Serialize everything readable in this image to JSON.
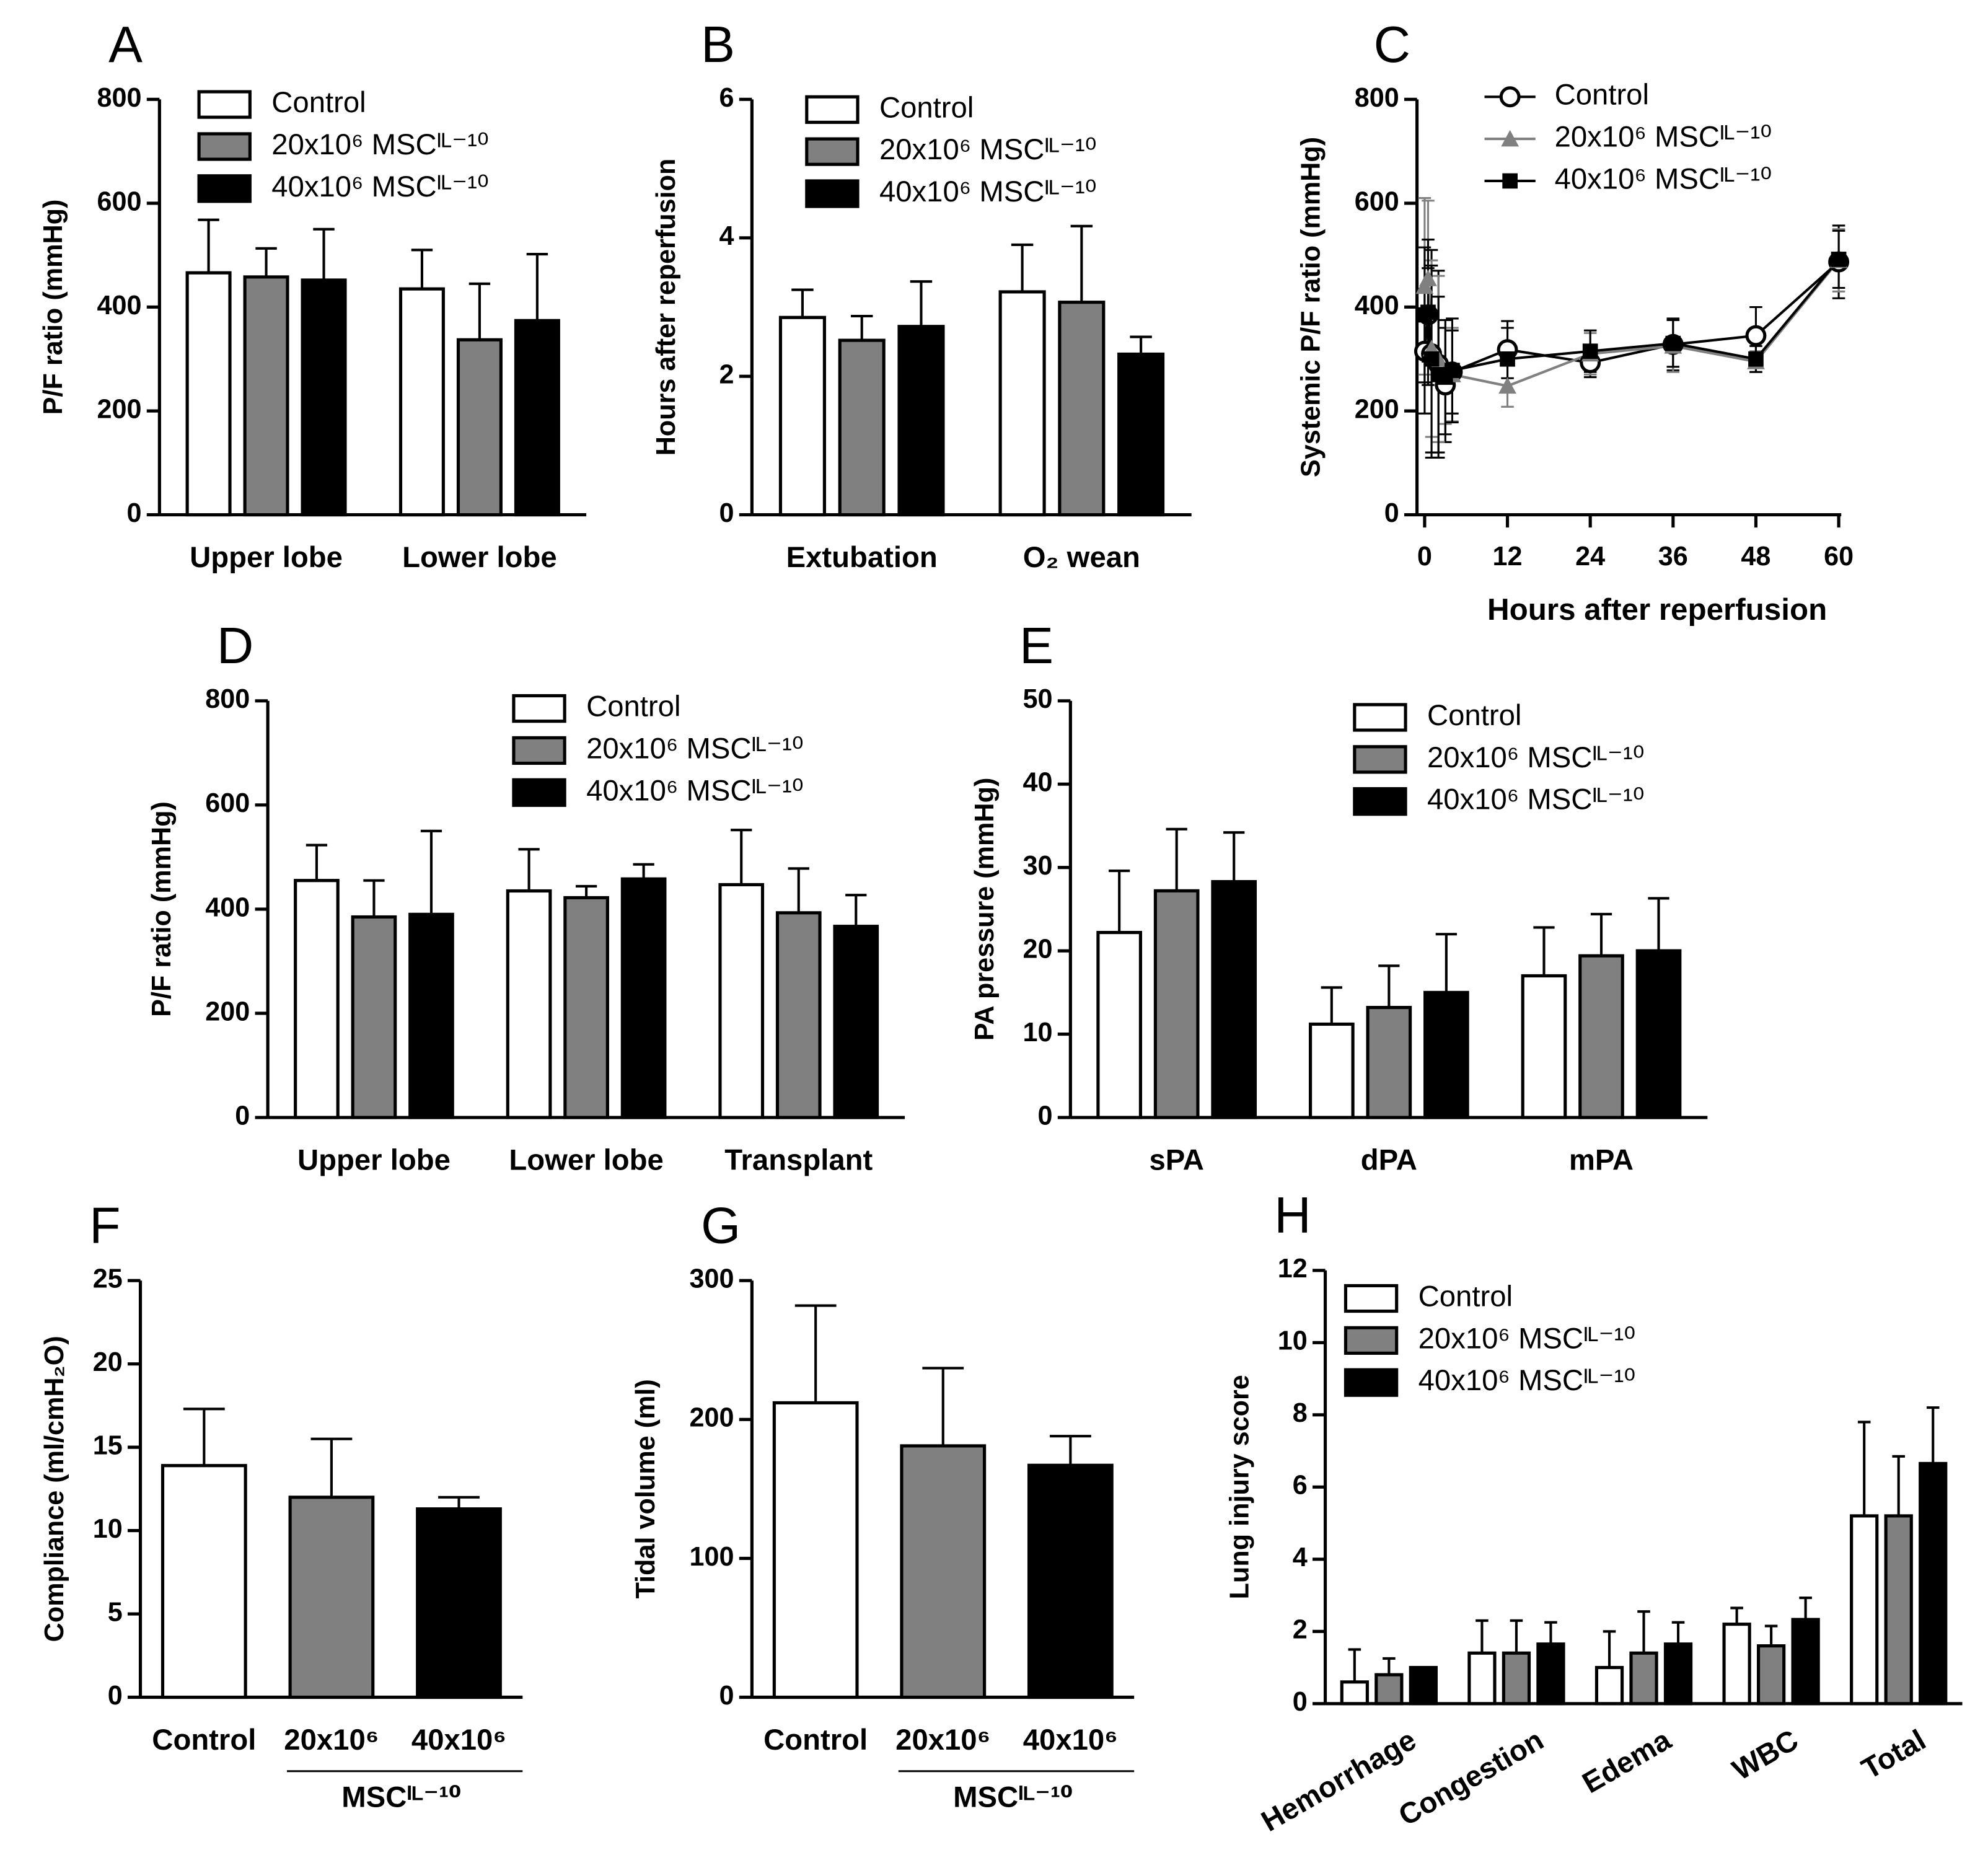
{
  "chart_data": [
    {
      "type": "bar",
      "label": "A",
      "ylabel": "P/F ratio (mmHg)",
      "categories": [
        "Upper lobe",
        "Lower lobe"
      ],
      "series": [
        {
          "name": "Control",
          "color": "#ffffff",
          "values": [
            466,
            435
          ],
          "errors": [
            102,
            75
          ]
        },
        {
          "name": "20x10⁶ MSCᴵᴸ⁻¹⁰",
          "color": "#808080",
          "values": [
            458,
            337
          ],
          "errors": [
            55,
            108
          ]
        },
        {
          "name": "40x10⁶ MSCᴵᴸ⁻¹⁰",
          "color": "#000000",
          "values": [
            452,
            374
          ],
          "errors": [
            98,
            128
          ]
        }
      ],
      "ylim": [
        0,
        800
      ],
      "yticks": [
        0,
        200,
        400,
        600,
        800
      ],
      "legend": "upper right"
    },
    {
      "type": "bar",
      "label": "B",
      "ylabel": "Hours after reperfusion",
      "categories": [
        "Extubation",
        "O₂ wean"
      ],
      "series": [
        {
          "name": "Control",
          "color": "#ffffff",
          "values": [
            2.85,
            3.22
          ],
          "errors": [
            0.4,
            0.68
          ]
        },
        {
          "name": "20x10⁶ MSCᴵᴸ⁻¹⁰",
          "color": "#808080",
          "values": [
            2.52,
            3.07
          ],
          "errors": [
            0.35,
            1.1
          ]
        },
        {
          "name": "40x10⁶ MSCᴵᴸ⁻¹⁰",
          "color": "#000000",
          "values": [
            2.72,
            2.32
          ],
          "errors": [
            0.65,
            0.25
          ]
        }
      ],
      "ylim": [
        0,
        6
      ],
      "yticks": [
        0,
        2,
        4,
        6
      ],
      "legend": "upper right"
    },
    {
      "type": "line",
      "label": "C",
      "ylabel": "Systemic P/F ratio (mmHg)",
      "xlabel": "Hours after reperfusion",
      "x": [
        0,
        0.5,
        1,
        2,
        3,
        4,
        12,
        24,
        36,
        48,
        60
      ],
      "series": [
        {
          "name": "Control",
          "color": "#000000",
          "marker": "open-circle",
          "values": [
            315,
            385,
            310,
            290,
            250,
            275,
            318,
            293,
            328,
            345,
            487
          ],
          "errors": [
            120,
            90,
            200,
            180,
            110,
            80,
            55,
            28,
            50,
            55,
            70
          ]
        },
        {
          "name": "20x10⁶ MSCᴵᴸ⁻¹⁰",
          "color": "#808080",
          "marker": "triangle",
          "values": [
            440,
            455,
            320,
            300,
            275,
            270,
            248,
            310,
            325,
            295,
            490
          ],
          "errors": [
            170,
            150,
            170,
            160,
            100,
            90,
            40,
            40,
            50,
            20,
            60
          ]
        },
        {
          "name": "40x10⁶ MSCᴵᴸ⁻¹⁰",
          "color": "#000000",
          "marker": "square",
          "values": [
            385,
            390,
            300,
            270,
            265,
            278,
            300,
            315,
            330,
            300,
            492
          ],
          "errors": [
            130,
            140,
            180,
            150,
            110,
            100,
            60,
            40,
            45,
            25,
            55
          ]
        }
      ],
      "xlim": [
        0,
        60
      ],
      "xticks": [
        0,
        12,
        24,
        36,
        48,
        60
      ],
      "ylim": [
        0,
        800
      ],
      "yticks": [
        0,
        200,
        400,
        600,
        800
      ],
      "legend": "upper right"
    },
    {
      "type": "bar",
      "label": "D",
      "ylabel": "P/F ratio (mmHg)",
      "categories": [
        "Upper lobe",
        "Lower lobe",
        "Transplant"
      ],
      "series": [
        {
          "name": "Control",
          "color": "#ffffff",
          "values": [
            455,
            435,
            447
          ],
          "errors": [
            68,
            80,
            105
          ]
        },
        {
          "name": "20x10⁶ MSCᴵᴸ⁻¹⁰",
          "color": "#808080",
          "values": [
            385,
            422,
            393
          ],
          "errors": [
            70,
            22,
            85
          ]
        },
        {
          "name": "40x10⁶ MSCᴵᴸ⁻¹⁰",
          "color": "#000000",
          "values": [
            390,
            458,
            367
          ],
          "errors": [
            160,
            28,
            60
          ]
        }
      ],
      "ylim": [
        0,
        800
      ],
      "yticks": [
        0,
        200,
        400,
        600,
        800
      ],
      "legend": "upper right"
    },
    {
      "type": "bar",
      "label": "E",
      "ylabel": "PA pressure (mmHg)",
      "categories": [
        "sPA",
        "dPA",
        "mPA"
      ],
      "series": [
        {
          "name": "Control",
          "color": "#ffffff",
          "values": [
            22.2,
            11.2,
            17
          ],
          "errors": [
            7.4,
            4.4,
            5.8
          ]
        },
        {
          "name": "20x10⁶ MSCᴵᴸ⁻¹⁰",
          "color": "#808080",
          "values": [
            27.2,
            13.2,
            19.4
          ],
          "errors": [
            7.4,
            5,
            5
          ]
        },
        {
          "name": "40x10⁶ MSCᴵᴸ⁻¹⁰",
          "color": "#000000",
          "values": [
            28.3,
            15,
            20
          ],
          "errors": [
            5.9,
            7,
            6.3
          ]
        }
      ],
      "ylim": [
        0,
        50
      ],
      "yticks": [
        0,
        10,
        20,
        30,
        40,
        50
      ],
      "legend": "upper right"
    },
    {
      "type": "bar",
      "label": "F",
      "ylabel": "Compliance (ml/cmH₂O)",
      "categories": [
        "Control",
        "20x10⁶",
        "40x10⁶"
      ],
      "group_label": "MSCᴵᴸ⁻¹⁰",
      "values": [
        13.9,
        12.0,
        11.3
      ],
      "errors": [
        3.4,
        3.5,
        0.7
      ],
      "colors": [
        "#ffffff",
        "#808080",
        "#000000"
      ],
      "ylim": [
        0,
        25
      ],
      "yticks": [
        0,
        5,
        10,
        15,
        20,
        25
      ]
    },
    {
      "type": "bar",
      "label": "G",
      "ylabel": "Tidal volume (ml)",
      "categories": [
        "Control",
        "20x10⁶",
        "40x10⁶"
      ],
      "group_label": "MSCᴵᴸ⁻¹⁰",
      "values": [
        212,
        181,
        167
      ],
      "errors": [
        70,
        56,
        21
      ],
      "colors": [
        "#ffffff",
        "#808080",
        "#000000"
      ],
      "ylim": [
        0,
        300
      ],
      "yticks": [
        0,
        100,
        200,
        300
      ]
    },
    {
      "type": "bar",
      "label": "H",
      "ylabel": "Lung injury score",
      "categories": [
        "Hemorrhage",
        "Congestion",
        "Edema",
        "WBC",
        "Total"
      ],
      "series": [
        {
          "name": "Control",
          "color": "#ffffff",
          "values": [
            0.6,
            1.4,
            1.0,
            2.2,
            5.2
          ],
          "errors": [
            0.9,
            0.9,
            1.0,
            0.45,
            2.6
          ]
        },
        {
          "name": "20x10⁶ MSCᴵᴸ⁻¹⁰",
          "color": "#808080",
          "values": [
            0.8,
            1.4,
            1.4,
            1.6,
            5.2
          ],
          "errors": [
            0.45,
            0.9,
            1.15,
            0.55,
            1.65
          ]
        },
        {
          "name": "40x10⁶ MSCᴵᴸ⁻¹⁰",
          "color": "#000000",
          "values": [
            1.0,
            1.65,
            1.65,
            2.33,
            6.65
          ],
          "errors": [
            0,
            0.6,
            0.6,
            0.6,
            1.55
          ]
        }
      ],
      "ylim": [
        0,
        12
      ],
      "yticks": [
        0,
        2,
        4,
        6,
        8,
        10,
        12
      ],
      "legend": "upper left",
      "rotate_labels": true
    }
  ]
}
